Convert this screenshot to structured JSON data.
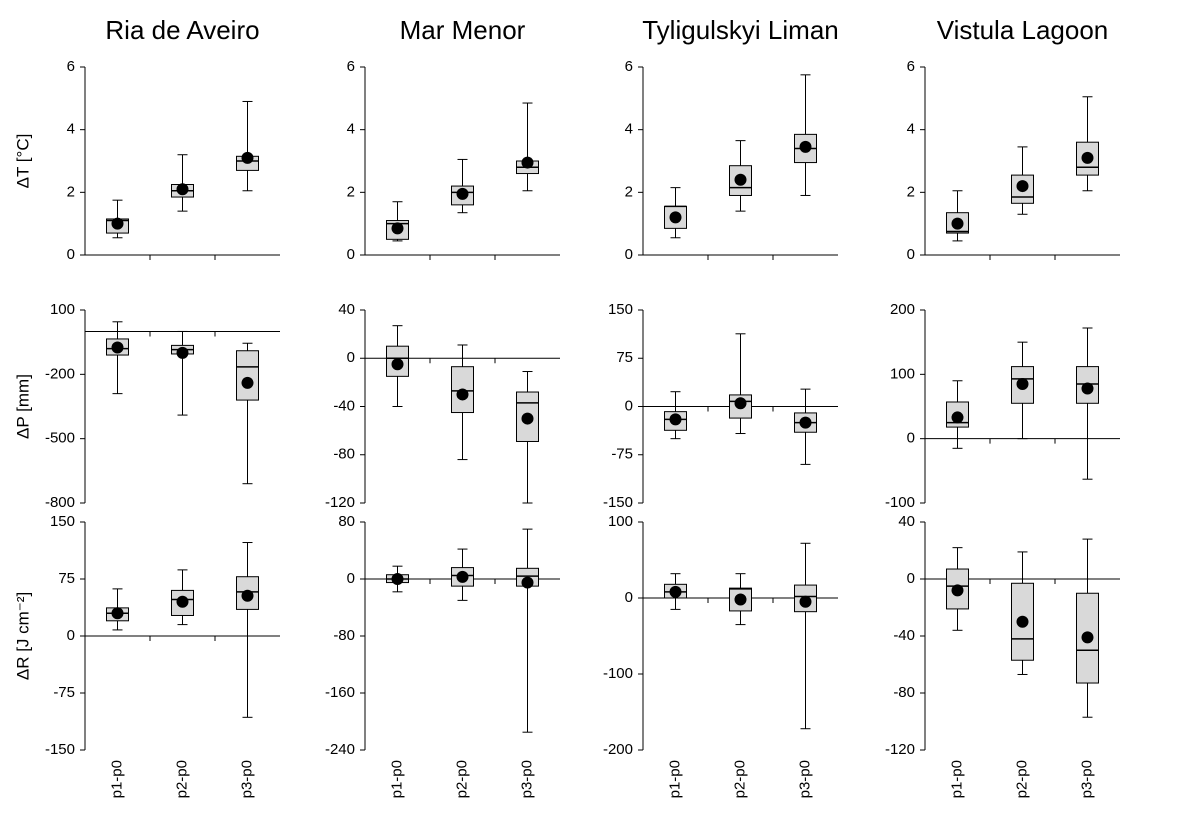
{
  "chart_data": [
    {
      "type": "box",
      "title": "Ria de Aveiro",
      "ylabel": "ΔT [°C]",
      "ylim": [
        0,
        6
      ],
      "yticks": [
        0,
        2,
        4,
        6
      ],
      "boxes": [
        {
          "whislo": 0.55,
          "q1": 0.7,
          "med": 1.1,
          "q3": 1.15,
          "whishi": 1.75,
          "mean": 1.0
        },
        {
          "whislo": 1.4,
          "q1": 1.85,
          "med": 2.05,
          "q3": 2.25,
          "whishi": 3.2,
          "mean": 2.1
        },
        {
          "whislo": 2.05,
          "q1": 2.7,
          "med": 3.0,
          "q3": 3.15,
          "whishi": 4.9,
          "mean": 3.1
        }
      ]
    },
    {
      "type": "box",
      "title": "Mar Menor",
      "ylim": [
        0,
        6
      ],
      "yticks": [
        0,
        2,
        4,
        6
      ],
      "boxes": [
        {
          "whislo": 0.45,
          "q1": 0.5,
          "med": 1.0,
          "q3": 1.1,
          "whishi": 1.7,
          "mean": 0.85
        },
        {
          "whislo": 1.35,
          "q1": 1.6,
          "med": 2.0,
          "q3": 2.2,
          "whishi": 3.05,
          "mean": 1.95
        },
        {
          "whislo": 2.05,
          "q1": 2.6,
          "med": 2.8,
          "q3": 3.0,
          "whishi": 4.85,
          "mean": 2.95
        }
      ]
    },
    {
      "type": "box",
      "title": "Tyligulskyi Liman",
      "ylim": [
        0,
        6
      ],
      "yticks": [
        0,
        2,
        4,
        6
      ],
      "boxes": [
        {
          "whislo": 0.55,
          "q1": 0.85,
          "med": 1.55,
          "q3": 1.55,
          "whishi": 2.15,
          "mean": 1.2
        },
        {
          "whislo": 1.4,
          "q1": 1.9,
          "med": 2.15,
          "q3": 2.85,
          "whishi": 3.65,
          "mean": 2.4
        },
        {
          "whislo": 1.9,
          "q1": 2.95,
          "med": 3.4,
          "q3": 3.85,
          "whishi": 5.75,
          "mean": 3.45
        }
      ]
    },
    {
      "type": "box",
      "title": "Vistula Lagoon",
      "ylim": [
        0,
        6
      ],
      "yticks": [
        0,
        2,
        4,
        6
      ],
      "boxes": [
        {
          "whislo": 0.45,
          "q1": 0.7,
          "med": 0.75,
          "q3": 1.35,
          "whishi": 2.05,
          "mean": 1.0
        },
        {
          "whislo": 1.3,
          "q1": 1.65,
          "med": 1.85,
          "q3": 2.55,
          "whishi": 3.45,
          "mean": 2.2
        },
        {
          "whislo": 2.05,
          "q1": 2.55,
          "med": 2.8,
          "q3": 3.6,
          "whishi": 5.05,
          "mean": 3.1
        }
      ]
    },
    {
      "type": "box",
      "ylabel": "ΔP [mm]",
      "ylim": [
        -800,
        100
      ],
      "yticks": [
        -800,
        -500,
        -200,
        100
      ],
      "zero_line": true,
      "boxes": [
        {
          "whislo": -290,
          "q1": -110,
          "med": -80,
          "q3": -35,
          "whishi": 45,
          "mean": -75
        },
        {
          "whislo": -390,
          "q1": -105,
          "med": -85,
          "q3": -65,
          "whishi": 0,
          "mean": -100
        },
        {
          "whislo": -710,
          "q1": -320,
          "med": -165,
          "q3": -90,
          "whishi": -55,
          "mean": -240
        }
      ]
    },
    {
      "type": "box",
      "ylim": [
        -120,
        40
      ],
      "yticks": [
        -120,
        -80,
        -40,
        0,
        40
      ],
      "zero_line": true,
      "boxes": [
        {
          "whislo": -40,
          "q1": -15,
          "med": 0,
          "q3": 10,
          "whishi": 27,
          "mean": -5
        },
        {
          "whislo": -84,
          "q1": -45,
          "med": -27,
          "q3": -7,
          "whishi": 11,
          "mean": -30
        },
        {
          "whislo": -120,
          "q1": -69,
          "med": -37,
          "q3": -28,
          "whishi": -11,
          "mean": -50
        }
      ]
    },
    {
      "type": "box",
      "ylim": [
        -150,
        150
      ],
      "yticks": [
        -150,
        -75,
        0,
        75,
        150
      ],
      "zero_line": true,
      "boxes": [
        {
          "whislo": -50,
          "q1": -37,
          "med": -20,
          "q3": -8,
          "whishi": 23,
          "mean": -20
        },
        {
          "whislo": -42,
          "q1": -18,
          "med": 8,
          "q3": 18,
          "whishi": 113,
          "mean": 5
        },
        {
          "whislo": -90,
          "q1": -40,
          "med": -25,
          "q3": -10,
          "whishi": 27,
          "mean": -25
        }
      ]
    },
    {
      "type": "box",
      "ylim": [
        -100,
        200
      ],
      "yticks": [
        -100,
        0,
        100,
        200
      ],
      "zero_line": true,
      "boxes": [
        {
          "whislo": -15,
          "q1": 18,
          "med": 25,
          "q3": 57,
          "whishi": 90,
          "mean": 33
        },
        {
          "whislo": 0,
          "q1": 55,
          "med": 93,
          "q3": 112,
          "whishi": 150,
          "mean": 85
        },
        {
          "whislo": -63,
          "q1": 55,
          "med": 85,
          "q3": 112,
          "whishi": 172,
          "mean": 78
        }
      ]
    },
    {
      "type": "box",
      "ylabel": "ΔR [J cm⁻²]",
      "categories": [
        "p1-p0",
        "p2-p0",
        "p3-p0"
      ],
      "ylim": [
        -150,
        150
      ],
      "yticks": [
        -150,
        -75,
        0,
        75,
        150
      ],
      "zero_line": true,
      "boxes": [
        {
          "whislo": 8,
          "q1": 20,
          "med": 30,
          "q3": 37,
          "whishi": 62,
          "mean": 30
        },
        {
          "whislo": 15,
          "q1": 27,
          "med": 48,
          "q3": 60,
          "whishi": 87,
          "mean": 45
        },
        {
          "whislo": -107,
          "q1": 35,
          "med": 58,
          "q3": 78,
          "whishi": 123,
          "mean": 53
        }
      ]
    },
    {
      "type": "box",
      "categories": [
        "p1-p0",
        "p2-p0",
        "p3-p0"
      ],
      "ylim": [
        -240,
        80
      ],
      "yticks": [
        -240,
        -160,
        -80,
        0,
        80
      ],
      "zero_line": true,
      "boxes": [
        {
          "whislo": -18,
          "q1": -5,
          "med": 0,
          "q3": 6,
          "whishi": 18,
          "mean": 0
        },
        {
          "whislo": -30,
          "q1": -10,
          "med": 5,
          "q3": 16,
          "whishi": 42,
          "mean": 3
        },
        {
          "whislo": -215,
          "q1": -10,
          "med": 4,
          "q3": 15,
          "whishi": 70,
          "mean": -5
        }
      ]
    },
    {
      "type": "box",
      "categories": [
        "p1-p0",
        "p2-p0",
        "p3-p0"
      ],
      "ylim": [
        -200,
        100
      ],
      "yticks": [
        -200,
        -100,
        0,
        100
      ],
      "zero_line": true,
      "boxes": [
        {
          "whislo": -15,
          "q1": 0,
          "med": 8,
          "q3": 18,
          "whishi": 32,
          "mean": 8
        },
        {
          "whislo": -35,
          "q1": -17,
          "med": 12,
          "q3": 13,
          "whishi": 32,
          "mean": -2
        },
        {
          "whislo": -172,
          "q1": -18,
          "med": 2,
          "q3": 17,
          "whishi": 72,
          "mean": -5
        }
      ]
    },
    {
      "type": "box",
      "categories": [
        "p1-p0",
        "p2-p0",
        "p3-p0"
      ],
      "ylim": [
        -120,
        40
      ],
      "yticks": [
        -120,
        -80,
        -40,
        0,
        40
      ],
      "zero_line": true,
      "boxes": [
        {
          "whislo": -36,
          "q1": -21,
          "med": -5,
          "q3": 7,
          "whishi": 22,
          "mean": -8
        },
        {
          "whislo": -67,
          "q1": -57,
          "med": -42,
          "q3": -3,
          "whishi": 19,
          "mean": -30
        },
        {
          "whislo": -97,
          "q1": -73,
          "med": -50,
          "q3": -10,
          "whishi": 28,
          "mean": -41
        }
      ]
    }
  ]
}
